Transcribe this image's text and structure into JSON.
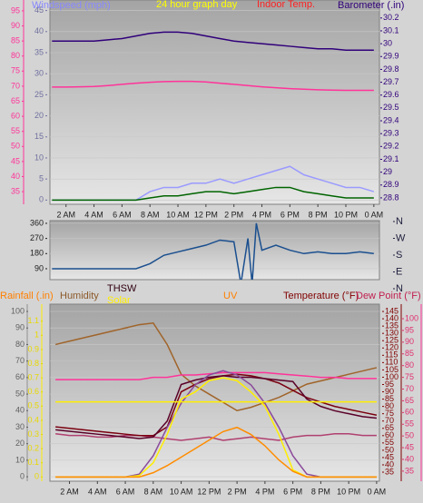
{
  "chart_data": [
    {
      "type": "line",
      "ylabel": "Windspeed (mph)",
      "title": "24 hour graph day",
      "y3label": "Indoor Temp.",
      "y2label": "Barometer (.in)",
      "x": [
        1,
        2,
        3,
        4,
        5,
        6,
        7,
        8,
        9,
        10,
        11,
        12,
        13,
        14,
        15,
        16,
        17,
        18,
        19,
        20,
        21,
        22,
        23,
        24
      ],
      "xlim": [
        0.85,
        24.4
      ],
      "xticks": [
        {
          "value": 2,
          "label": "2 AM"
        },
        {
          "value": 4,
          "label": "4 AM"
        },
        {
          "value": 6,
          "label": "6 AM"
        },
        {
          "value": 8,
          "label": "8 AM"
        },
        {
          "value": 10,
          "label": "10 AM"
        },
        {
          "value": 12,
          "label": "12 PM"
        },
        {
          "value": 14,
          "label": "2 PM"
        },
        {
          "value": 16,
          "label": "4 PM"
        },
        {
          "value": 18,
          "label": "6 PM"
        },
        {
          "value": 20,
          "label": "8 PM"
        },
        {
          "value": 22,
          "label": "10 PM"
        },
        {
          "value": 24,
          "label": "0 AM"
        }
      ],
      "ylim": [
        -1,
        47.5
      ],
      "yticks": [
        0,
        5,
        10,
        15,
        20,
        25,
        30,
        35,
        40,
        45
      ],
      "y2lim": [
        28.75,
        30.34
      ],
      "y2ticks": [
        28.8,
        28.9,
        29,
        29.1,
        29.2,
        29.3,
        29.4,
        29.5,
        29.6,
        29.7,
        29.8,
        29.9,
        30,
        30.1,
        30.2
      ],
      "y3lim": [
        30.8,
        98.6
      ],
      "y3ticks": [
        35,
        40,
        45,
        50,
        55,
        60,
        65,
        70,
        75,
        80,
        85,
        90,
        95
      ],
      "grid": true,
      "series": [
        {
          "color": "#9a9aff",
          "axis": "y",
          "values": [
            0,
            0,
            0,
            0,
            0,
            0,
            0,
            2,
            3,
            3,
            4,
            4,
            5,
            4,
            5,
            6,
            7,
            8,
            6,
            5,
            4,
            3,
            3,
            2
          ]
        },
        {
          "color": "#006400",
          "axis": "y",
          "values": [
            0,
            0,
            0,
            0,
            0,
            0,
            0,
            0.5,
            1,
            1,
            1.5,
            2,
            2,
            1.5,
            2,
            2.5,
            3,
            3,
            2,
            1.5,
            1,
            0.5,
            0.5,
            0.5
          ]
        },
        {
          "color": "#ff3399",
          "axis": "y3",
          "values": [
            69.7,
            69.7,
            69.8,
            69.9,
            70.2,
            70.6,
            71,
            71.3,
            71.5,
            71.6,
            71.6,
            71.4,
            71,
            70.6,
            70.2,
            69.8,
            69.5,
            69.2,
            69,
            68.8,
            68.7,
            68.6,
            68.6,
            68.6
          ]
        },
        {
          "color": "#30007a",
          "axis": "y2",
          "values": [
            30.02,
            30.02,
            30.02,
            30.02,
            30.03,
            30.04,
            30.06,
            30.08,
            30.09,
            30.09,
            30.08,
            30.06,
            30.04,
            30.02,
            30.01,
            30,
            29.99,
            29.98,
            29.97,
            29.96,
            29.96,
            29.95,
            29.95,
            29.95
          ]
        }
      ]
    },
    {
      "type": "line",
      "x": [
        1,
        2,
        3,
        4,
        5,
        6,
        7,
        8,
        9,
        10,
        11,
        12,
        13,
        14,
        14.5,
        15,
        15.3,
        15.6,
        16,
        17,
        18,
        19,
        20,
        21,
        22,
        23,
        24
      ],
      "xlim": [
        0.85,
        24.4
      ],
      "ylim": [
        25,
        376
      ],
      "yticks": [
        90,
        180,
        270,
        360
      ],
      "y2lim": [
        48.6,
        364.9
      ],
      "y2ticks": [
        {
          "value": 360,
          "label": "N"
        },
        {
          "value": 270,
          "label": "W"
        },
        {
          "value": 180,
          "label": "S"
        },
        {
          "value": 90,
          "label": "E"
        },
        {
          "value": 0,
          "label": "N"
        }
      ],
      "grid": true,
      "series": [
        {
          "color": "#1a4f8f",
          "axis": "y",
          "values": [
            90,
            90,
            90,
            90,
            90,
            90,
            90,
            120,
            170,
            190,
            210,
            230,
            260,
            250,
            0,
            270,
            0,
            360,
            200,
            230,
            200,
            180,
            190,
            180,
            180,
            190,
            180
          ]
        }
      ]
    },
    {
      "type": "line",
      "y2label": "Rainfall (.in)",
      "ylabel": "Humidity",
      "y3label": "Temperature (°F)",
      "y4label": "Dew Point (°F)",
      "x": [
        1,
        2,
        3,
        4,
        5,
        6,
        7,
        8,
        9,
        10,
        11,
        12,
        13,
        14,
        15,
        16,
        17,
        18,
        19,
        20,
        21,
        22,
        23,
        24
      ],
      "xlim": [
        0.6,
        24.2
      ],
      "xticks": [
        {
          "value": 2,
          "label": "2 AM"
        },
        {
          "value": 4,
          "label": "4 AM"
        },
        {
          "value": 6,
          "label": "6 AM"
        },
        {
          "value": 8,
          "label": "8 AM"
        },
        {
          "value": 10,
          "label": "10 AM"
        },
        {
          "value": 12,
          "label": "12 PM"
        },
        {
          "value": 14,
          "label": "2 PM"
        },
        {
          "value": 16,
          "label": "4 PM"
        },
        {
          "value": 18,
          "label": "6 PM"
        },
        {
          "value": 20,
          "label": "8 PM"
        },
        {
          "value": 22,
          "label": "10 PM"
        },
        {
          "value": 24,
          "label": "0 AM"
        }
      ],
      "ylim": [
        -2.7,
        104.4
      ],
      "yticks": [
        0,
        10,
        20,
        30,
        40,
        50,
        60,
        70,
        80,
        90,
        100
      ],
      "y2lim": [
        -0.03,
        1.22
      ],
      "y2ticks": [
        0,
        0.1,
        0.2,
        0.3,
        0.4,
        0.5,
        0.6,
        0.7,
        0.8,
        0.9,
        1,
        1.1
      ],
      "y3lim": [
        28.8,
        150
      ],
      "y3ticks": [
        35,
        40,
        45,
        50,
        55,
        60,
        65,
        70,
        75,
        80,
        85,
        90,
        95,
        100,
        105,
        110,
        115,
        120,
        125,
        130,
        135,
        140,
        145
      ],
      "y4lim": [
        30.7,
        106.2
      ],
      "y4ticks": [
        35,
        40,
        45,
        50,
        55,
        60,
        65,
        70,
        75,
        80,
        85,
        90,
        95,
        100
      ],
      "grid": true,
      "series": [
        {
          "color": "#a0642a",
          "axis": "y",
          "values": [
            80,
            82,
            84,
            86,
            88,
            90,
            92,
            93,
            80,
            62,
            55,
            50,
            45,
            40,
            42,
            45,
            48,
            52,
            56,
            58,
            60,
            62,
            64,
            66
          ]
        },
        {
          "color": "#b04070",
          "axis": "y",
          "values": [
            26,
            25,
            25,
            24,
            24,
            25,
            25,
            24,
            23,
            22,
            23,
            24,
            22,
            23,
            24,
            23,
            22,
            24,
            25,
            25,
            26,
            26,
            25,
            25
          ]
        },
        {
          "color": "#7a0010",
          "axis": "y3",
          "values": [
            66,
            65,
            64,
            63,
            62,
            61,
            60,
            60,
            66,
            90,
            95,
            99,
            101,
            102,
            101,
            99,
            96,
            91,
            86,
            83,
            80,
            78,
            76,
            74
          ]
        },
        {
          "name": "THSW",
          "color": "#5a0028",
          "axis": "y3",
          "values": [
            64,
            63,
            62,
            61,
            60,
            59,
            58,
            59,
            70,
            95,
            98,
            100,
            101,
            100,
            100,
            99,
            98,
            97,
            85,
            80,
            77,
            75,
            73,
            72
          ]
        },
        {
          "color": "#ff3399",
          "axis": "y4",
          "values": [
            74,
            74,
            74,
            74,
            74,
            74,
            74,
            75,
            75,
            76,
            76,
            76.5,
            77,
            77,
            77,
            77,
            76.5,
            76,
            75.5,
            75,
            75,
            74.5,
            74.5,
            74.5
          ]
        },
        {
          "color": "#8a4a9a",
          "axis": "y2",
          "values": [
            0,
            0,
            0,
            0,
            0,
            0,
            0.02,
            0.15,
            0.35,
            0.52,
            0.65,
            0.72,
            0.75,
            0.72,
            0.65,
            0.52,
            0.35,
            0.15,
            0.02,
            0,
            0,
            0,
            0,
            0
          ]
        },
        {
          "name": "Solar",
          "color": "#ffee00",
          "axis": "y2",
          "values": [
            0,
            0,
            0,
            0,
            0,
            0,
            0.01,
            0.1,
            0.3,
            0.55,
            0.6,
            0.68,
            0.7,
            0.68,
            0.6,
            0.5,
            0.3,
            0.05,
            0,
            0,
            0,
            0,
            0,
            0
          ]
        },
        {
          "name": "UV",
          "color": "#ff8c00",
          "axis": "y2",
          "values": [
            0,
            0,
            0,
            0,
            0,
            0,
            0,
            0.03,
            0.08,
            0.14,
            0.2,
            0.26,
            0.32,
            0.35,
            0.3,
            0.22,
            0.12,
            0.04,
            0,
            0,
            0,
            0,
            0,
            0
          ]
        },
        {
          "color": "#ffee00",
          "axis": "y2",
          "values": [
            0.53,
            0.53,
            0.53,
            0.53,
            0.53,
            0.53,
            0.53,
            0.53,
            0.53,
            0.53,
            0.53,
            0.53,
            0.53,
            0.53,
            0.53,
            0.53,
            0.53,
            0.53,
            0.53,
            0.53,
            0.53,
            0.53,
            0.53,
            0.53
          ]
        }
      ]
    }
  ]
}
